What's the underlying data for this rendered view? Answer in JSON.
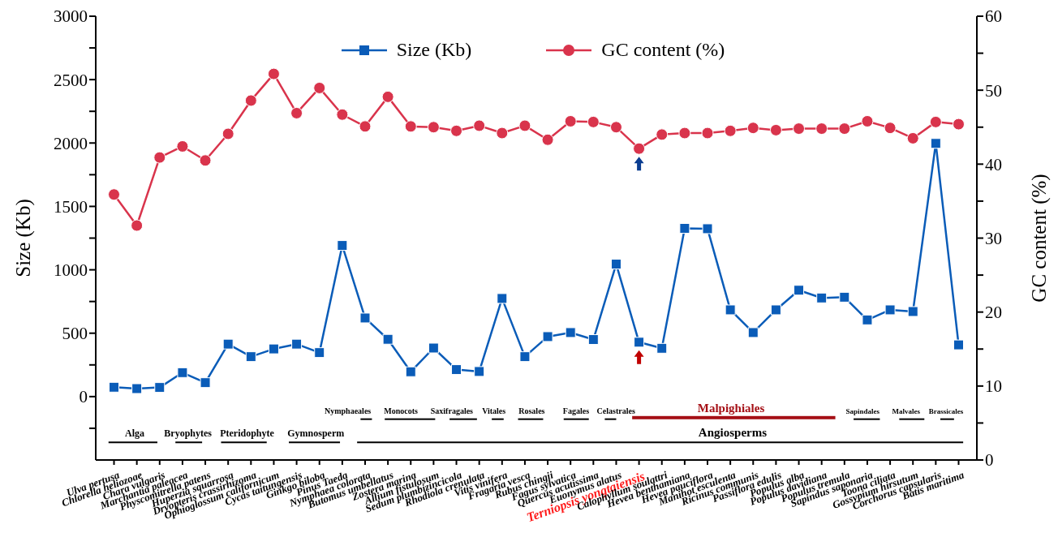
{
  "chart_data": {
    "type": "line",
    "xlabel": null,
    "ylabel": "Size (Kb)",
    "y2label": "GC content (%)",
    "categories": [
      "Ulva pertusa",
      "Chlorella heliozoae",
      "Chara vulgaris",
      "Marchantia paleacea",
      "Physcomitrella patens",
      "Huperzia squarrosa",
      "Dryopteris crassirhizoma",
      "Ophioglossum californicum",
      "Cycas taitungensis",
      "Ginkgo biloba",
      "Pinus Taeda",
      "Nymphaea colorata",
      "Butomus umbellatus",
      "Zostera marina",
      "Allium fistulosum",
      "Sedum plumbizincicola",
      "Rhodiola crenulata",
      "Vitis vinifera",
      "Fragaria vesca",
      "Rubus chingii",
      "Fagus sylvatica",
      "Quercus acutissima",
      "Euonymus alatus",
      "Terniopsis yongtaiensis",
      "Calophyllum soulattri",
      "Hevea benthamiana",
      "Hevea pauciflora",
      "Manihot esculenta",
      "Ricinus communis",
      "Passiflora edulis",
      "Populus alba",
      "Populus davidiana",
      "Populus tremula",
      "Sapindus saponaria",
      "Toona ciliata",
      "Gossypium hirsutum",
      "Corchorus capsularis",
      "Batis maritima"
    ],
    "series": [
      {
        "name": "Size (Kb)",
        "color": "#0a5cb8",
        "marker": "square",
        "values": [
          74,
          63,
          72,
          189,
          110,
          414,
          315,
          376,
          414,
          347,
          1192,
          620,
          452,
          196,
          383,
          213,
          198,
          774,
          315,
          473,
          505,
          450,
          1045,
          429,
          381,
          1327,
          1324,
          684,
          505,
          684,
          839,
          778,
          784,
          605,
          684,
          671,
          1997,
          408
        ]
      },
      {
        "name": "GC content (%)",
        "color": "#d9344c",
        "marker": "circle",
        "axis": "y2",
        "values": [
          35.9,
          31.7,
          40.9,
          42.4,
          40.5,
          44.1,
          48.6,
          52.2,
          46.9,
          50.3,
          46.7,
          45.1,
          49.1,
          45.1,
          45.0,
          44.5,
          45.2,
          44.2,
          45.2,
          43.3,
          45.8,
          45.7,
          45.0,
          42.1,
          44.0,
          44.2,
          44.2,
          44.5,
          44.9,
          44.6,
          44.8,
          44.8,
          44.8,
          45.8,
          44.9,
          43.5,
          45.7,
          45.4
        ]
      }
    ],
    "ylim": [
      -500,
      3000
    ],
    "yticks": [
      {
        "value": -250,
        "label": null
      },
      0,
      {
        "value": 250,
        "label": null
      },
      500,
      {
        "value": 750,
        "label": null
      },
      1000,
      {
        "value": 1250,
        "label": null
      },
      1500,
      {
        "value": 1750,
        "label": null
      },
      2000,
      {
        "value": 2250,
        "label": null
      },
      2500,
      {
        "value": 2750,
        "label": null
      },
      3000
    ],
    "y2lim": [
      0,
      60
    ],
    "y2ticks": [
      0,
      {
        "value": 5,
        "label": null
      },
      10,
      {
        "value": 15,
        "label": null
      },
      20,
      {
        "value": 25,
        "label": null
      },
      30,
      {
        "value": 35,
        "label": null
      },
      40,
      {
        "value": 45,
        "label": null
      },
      50,
      {
        "value": 55,
        "label": null
      },
      60
    ],
    "legend": "top",
    "grid": false,
    "annotations": [
      "Nymphaeales",
      "Monocots",
      "Saxifragales",
      "Vitales",
      "Rosales",
      "Fagales",
      "Celastrales",
      "Malpighiales",
      "Sapindales",
      "Malvales",
      "Brassicales",
      "Alga",
      "Bryophytes",
      "Pteridophyte",
      "Gymnosperm",
      "Angiosperms"
    ]
  }
}
